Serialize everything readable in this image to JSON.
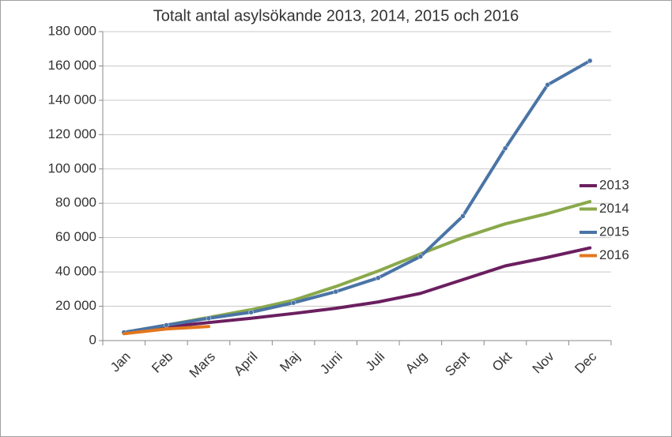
{
  "chart_data": {
    "type": "line",
    "title": "Totalt antal asylsökande 2013, 2014, 2015 och 2016",
    "categories": [
      "Jan",
      "Feb",
      "Mars",
      "April",
      "Maj",
      "Juni",
      "Juli",
      "Aug",
      "Sept",
      "Okt",
      "Nov",
      "Dec"
    ],
    "series": [
      {
        "name": "2013",
        "color": "#6b1f5f",
        "markers": false,
        "values": [
          4800,
          8000,
          10500,
          13000,
          15800,
          18800,
          22500,
          27500,
          35500,
          43500,
          48500,
          54000
        ]
      },
      {
        "name": "2014",
        "color": "#8aa94b",
        "markers": false,
        "values": [
          4800,
          9000,
          13500,
          18000,
          23500,
          31500,
          40500,
          50500,
          60000,
          68000,
          74000,
          81000
        ]
      },
      {
        "name": "2015",
        "color": "#4a74a6",
        "markers": true,
        "values": [
          4800,
          9000,
          13000,
          16500,
          22000,
          28500,
          36500,
          49000,
          72500,
          112000,
          149000,
          163000
        ]
      },
      {
        "name": "2016",
        "color": "#e3771e",
        "markers": false,
        "values": [
          4000,
          6800,
          8200,
          null,
          null,
          null,
          null,
          null,
          null,
          null,
          null,
          null
        ]
      }
    ],
    "ylim": [
      0,
      180000
    ],
    "yticks": [
      0,
      {
        "value": 20000,
        "label": "20 000"
      },
      {
        "value": 40000,
        "label": "40 000"
      },
      {
        "value": 60000,
        "label": "60 000"
      },
      {
        "value": 80000,
        "label": "80 000"
      },
      {
        "value": 100000,
        "label": "100 000"
      },
      {
        "value": 120000,
        "label": "120 000"
      },
      {
        "value": 140000,
        "label": "140 000"
      },
      {
        "value": 160000,
        "label": "160 000"
      },
      {
        "value": 180000,
        "label": "180 000"
      }
    ],
    "grid": true,
    "legend": "right"
  }
}
